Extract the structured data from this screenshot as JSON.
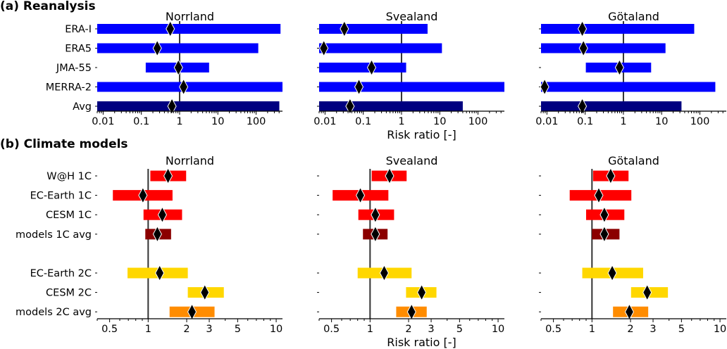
{
  "chart_data": [
    {
      "type": "bar",
      "section_title": "(a) Reanalysis",
      "xlabel": "Risk ratio [-]",
      "xscale": "log",
      "xlim": [
        0.007,
        490
      ],
      "xticks": [
        0.01,
        0.1,
        1,
        10,
        100
      ],
      "xtick_labels": [
        "0.01",
        "0.1",
        "1",
        "10",
        "100"
      ],
      "reference_line": 1,
      "categories": [
        "ERA-I",
        "ERA5",
        "JMA-55",
        "MERRA-2",
        "Avg"
      ],
      "colors": [
        "#0000ff",
        "#0000ff",
        "#0000ff",
        "#0000ff",
        "#000080"
      ],
      "panels": [
        {
          "title": "Norrland",
          "low": [
            0.007,
            0.007,
            0.13,
            0.007,
            0.007
          ],
          "high": [
            435,
            114,
            5.9,
            490,
            405
          ],
          "best": [
            0.57,
            0.26,
            0.93,
            1.27,
            0.63
          ]
        },
        {
          "title": "Svealand",
          "low": [
            0.007,
            0.007,
            0.007,
            0.007,
            0.007
          ],
          "high": [
            4.8,
            11.4,
            1.32,
            490,
            40
          ],
          "best": [
            0.032,
            0.0093,
            0.165,
            0.077,
            0.045
          ]
        },
        {
          "title": "Götaland",
          "low": [
            0.007,
            0.007,
            0.104,
            0.007,
            0.007
          ],
          "high": [
            71,
            12.6,
            5.3,
            253,
            33
          ],
          "best": [
            0.084,
            0.09,
            0.79,
            0.0087,
            0.084
          ]
        }
      ]
    },
    {
      "type": "bar",
      "section_title": "(b) Climate models",
      "xlabel": "Risk ratio [-]",
      "xscale": "log",
      "xlim": [
        0.4,
        11.2
      ],
      "xticks": [
        0.5,
        1,
        2,
        3,
        5,
        10
      ],
      "xtick_labels": [
        "0.5",
        "1",
        "2",
        "3",
        "5",
        "10"
      ],
      "reference_line": 1,
      "categories": [
        "W@H 1C",
        "EC-Earth 1C",
        "CESM 1C",
        "models 1C avg",
        "",
        "EC-Earth 2C",
        "CESM 2C",
        "models 2C avg"
      ],
      "colors": [
        "#ff0000",
        "#ff0000",
        "#ff0000",
        "#8b0000",
        "",
        "#ffd700",
        "#ffd700",
        "#ff8c00"
      ],
      "panels": [
        {
          "title": "Norrland",
          "low": [
            1.04,
            0.53,
            0.92,
            0.95,
            null,
            0.69,
            2.04,
            1.47
          ],
          "high": [
            1.98,
            1.55,
            1.84,
            1.51,
            null,
            2.04,
            3.9,
            3.3
          ],
          "best": [
            1.43,
            0.91,
            1.29,
            1.18,
            null,
            1.23,
            2.77,
            2.2
          ]
        },
        {
          "title": "Svealand",
          "low": [
            1.03,
            0.51,
            0.81,
            0.88,
            null,
            0.8,
            1.91,
            1.6
          ],
          "high": [
            1.93,
            1.39,
            1.54,
            1.37,
            null,
            2.11,
            3.3,
            2.77
          ],
          "best": [
            1.42,
            0.84,
            1.1,
            1.1,
            null,
            1.29,
            2.53,
            2.11
          ]
        },
        {
          "title": "Götaland",
          "low": [
            1.02,
            0.67,
            0.9,
            1.0,
            null,
            0.84,
            2.02,
            1.46
          ],
          "high": [
            1.93,
            2.03,
            1.79,
            1.64,
            null,
            2.51,
            3.92,
            2.75
          ],
          "best": [
            1.4,
            1.13,
            1.25,
            1.25,
            null,
            1.44,
            2.7,
            1.96
          ]
        }
      ]
    }
  ]
}
